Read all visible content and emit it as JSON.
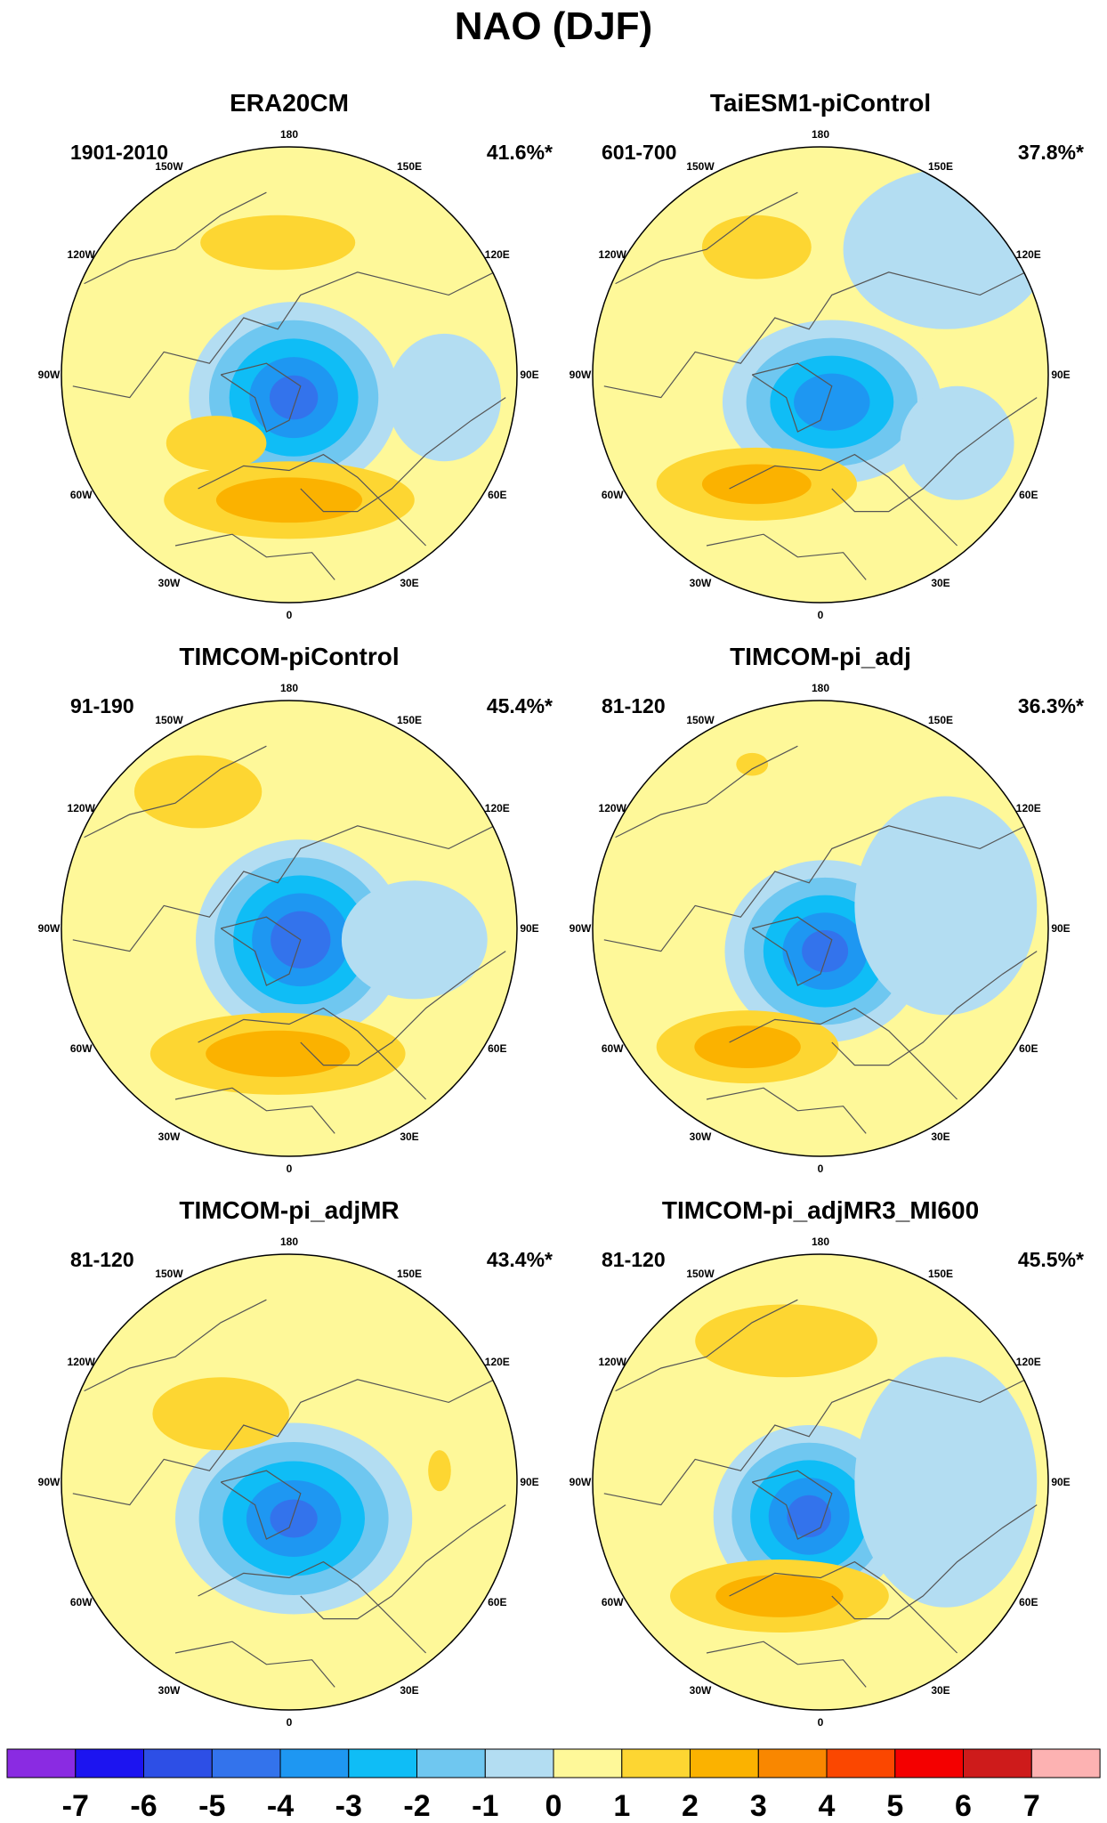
{
  "figure_title": "NAO (DJF)",
  "longitude_labels": [
    "180",
    "150E",
    "120E",
    "90E",
    "60E",
    "30E",
    "0",
    "30W",
    "60W",
    "90W",
    "120W",
    "150W"
  ],
  "panels": [
    {
      "id": "era20cm",
      "title": "ERA20CM",
      "period": "1901-2010",
      "variance": "41.6%*",
      "center": [
        325,
        421
      ],
      "radius": 256,
      "features": [
        {
          "type": "low",
          "dx": 0.02,
          "dy": 0.1,
          "rx": 0.46,
          "ry": 0.42,
          "peak": -4.6
        },
        {
          "type": "high",
          "dx": 0.0,
          "dy": 0.55,
          "rx": 0.55,
          "ry": 0.17,
          "peak": 2.4
        },
        {
          "type": "high",
          "dx": -0.32,
          "dy": 0.3,
          "rx": 0.22,
          "ry": 0.12,
          "peak": 1.5
        },
        {
          "type": "high",
          "dx": -0.05,
          "dy": -0.58,
          "rx": 0.34,
          "ry": 0.12,
          "peak": 1.4
        },
        {
          "type": "lowfield",
          "dx": 0.68,
          "dy": 0.1,
          "rx": 0.25,
          "ry": 0.28,
          "peak": -0.6
        }
      ]
    },
    {
      "id": "taiesm1",
      "title": "TaiESM1-piControl",
      "period": "601-700",
      "variance": "37.8%*",
      "center": [
        922,
        421
      ],
      "radius": 256,
      "features": [
        {
          "type": "low",
          "dx": 0.05,
          "dy": 0.12,
          "rx": 0.48,
          "ry": 0.36,
          "peak": -4.0
        },
        {
          "type": "high",
          "dx": -0.28,
          "dy": 0.48,
          "rx": 0.44,
          "ry": 0.16,
          "peak": 2.2
        },
        {
          "type": "high",
          "dx": -0.28,
          "dy": -0.56,
          "rx": 0.24,
          "ry": 0.14,
          "peak": 1.9
        },
        {
          "type": "lowfield",
          "dx": 0.55,
          "dy": -0.55,
          "rx": 0.45,
          "ry": 0.35,
          "peak": -0.6
        },
        {
          "type": "lowfield",
          "dx": 0.6,
          "dy": 0.3,
          "rx": 0.25,
          "ry": 0.25,
          "peak": -0.6
        }
      ]
    },
    {
      "id": "timcom-picontrol",
      "title": "TIMCOM-piControl",
      "period": "91-190",
      "variance": "45.4%*",
      "center": [
        325,
        1043
      ],
      "radius": 256,
      "features": [
        {
          "type": "low",
          "dx": 0.05,
          "dy": 0.05,
          "rx": 0.46,
          "ry": 0.44,
          "peak": -5.0
        },
        {
          "type": "high",
          "dx": -0.05,
          "dy": 0.55,
          "rx": 0.56,
          "ry": 0.18,
          "peak": 2.3
        },
        {
          "type": "high",
          "dx": -0.4,
          "dy": -0.6,
          "rx": 0.28,
          "ry": 0.16,
          "peak": 1.5
        },
        {
          "type": "lowfield",
          "dx": 0.55,
          "dy": 0.05,
          "rx": 0.32,
          "ry": 0.26,
          "peak": -0.6
        }
      ]
    },
    {
      "id": "timcom-pi-adj",
      "title": "TIMCOM-pi_adj",
      "period": "81-120",
      "variance": "36.3%*",
      "center": [
        922,
        1043
      ],
      "radius": 256,
      "features": [
        {
          "type": "low",
          "dx": 0.02,
          "dy": 0.1,
          "rx": 0.44,
          "ry": 0.4,
          "peak": -4.6
        },
        {
          "type": "high",
          "dx": -0.32,
          "dy": 0.52,
          "rx": 0.4,
          "ry": 0.16,
          "peak": 2.4
        },
        {
          "type": "high",
          "dx": -0.3,
          "dy": -0.72,
          "rx": 0.07,
          "ry": 0.05,
          "peak": 1.2
        },
        {
          "type": "lowfield",
          "dx": 0.55,
          "dy": -0.1,
          "rx": 0.4,
          "ry": 0.48,
          "peak": -0.6
        }
      ]
    },
    {
      "id": "timcom-pi-adjmr",
      "title": "TIMCOM-pi_adjMR",
      "period": "81-120",
      "variance": "43.4%*",
      "center": [
        325,
        1665
      ],
      "radius": 256,
      "features": [
        {
          "type": "low",
          "dx": 0.02,
          "dy": 0.16,
          "rx": 0.52,
          "ry": 0.42,
          "peak": -4.4
        },
        {
          "type": "high",
          "dx": -0.3,
          "dy": -0.3,
          "rx": 0.3,
          "ry": 0.16,
          "peak": 1.6
        },
        {
          "type": "high",
          "dx": 0.66,
          "dy": -0.05,
          "rx": 0.05,
          "ry": 0.09,
          "peak": 1.3
        }
      ]
    },
    {
      "id": "timcom-pi-adjmr3",
      "title": "TIMCOM-pi_adjMR3_MI600",
      "period": "81-120",
      "variance": "45.5%*",
      "center": [
        922,
        1665
      ],
      "radius": 256,
      "features": [
        {
          "type": "low",
          "dx": -0.05,
          "dy": 0.15,
          "rx": 0.42,
          "ry": 0.4,
          "peak": -4.6
        },
        {
          "type": "high",
          "dx": -0.18,
          "dy": 0.5,
          "rx": 0.48,
          "ry": 0.16,
          "peak": 2.4
        },
        {
          "type": "high",
          "dx": -0.15,
          "dy": -0.62,
          "rx": 0.4,
          "ry": 0.16,
          "peak": 1.5
        },
        {
          "type": "lowfield",
          "dx": 0.55,
          "dy": 0.0,
          "rx": 0.4,
          "ry": 0.55,
          "peak": -0.6
        }
      ]
    }
  ],
  "colorbar": {
    "colors": [
      "#8A2BE2",
      "#1C14F0",
      "#2D4FE6",
      "#3373EC",
      "#1E97F2",
      "#0FBDF6",
      "#6FC7F0",
      "#B3DDF2",
      "#FEF899",
      "#FDD632",
      "#FBB200",
      "#F98700",
      "#FB4700",
      "#F40000",
      "#CE1B1B",
      "#FDB2B2"
    ],
    "labels": [
      "-7",
      "-6",
      "-5",
      "-4",
      "-3",
      "-2",
      "-1",
      "0",
      "1",
      "2",
      "3",
      "4",
      "5",
      "6",
      "7"
    ]
  }
}
